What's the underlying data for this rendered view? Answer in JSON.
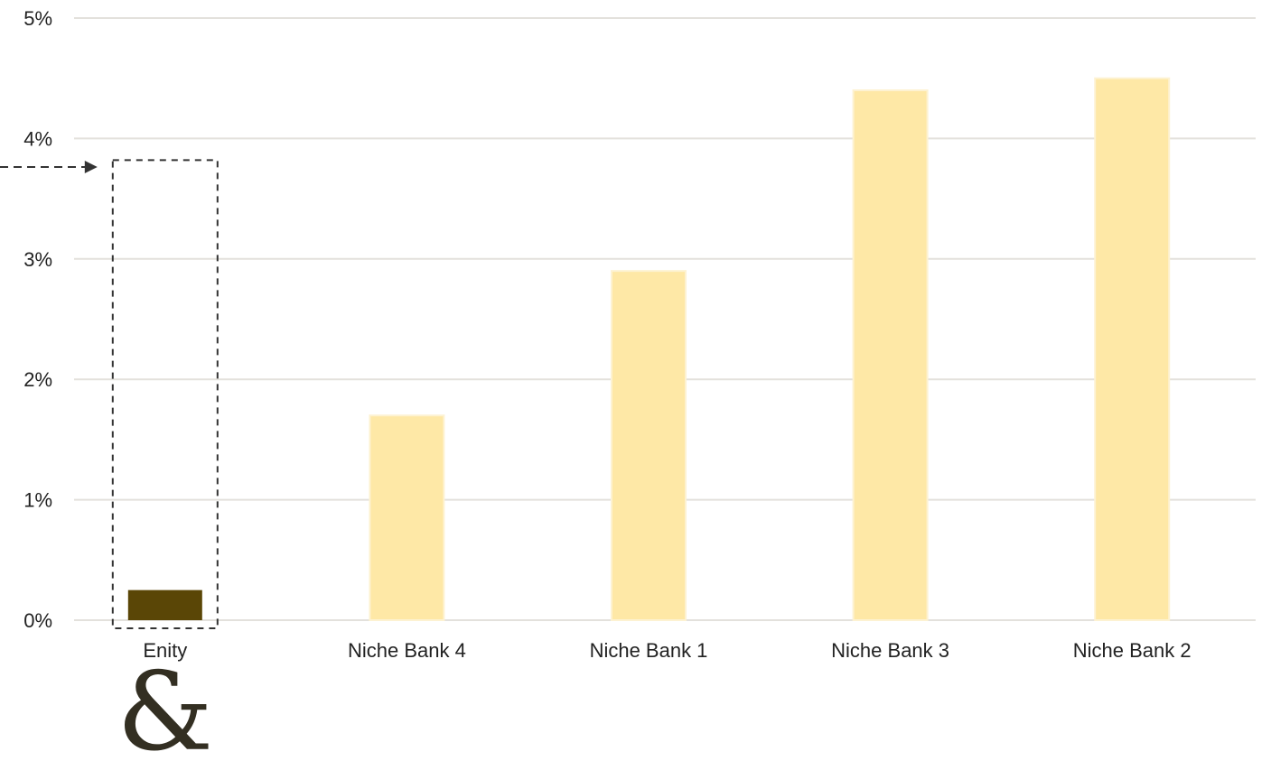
{
  "chart_data": {
    "type": "bar",
    "categories": [
      "Enity",
      "Niche Bank 4",
      "Niche Bank 1",
      "Niche Bank 3",
      "Niche Bank 2"
    ],
    "values": [
      0.25,
      1.7,
      2.9,
      4.4,
      4.5
    ],
    "value_unit": "%",
    "ylim": [
      0,
      5
    ],
    "yticks": [
      0,
      1,
      2,
      3,
      4,
      5
    ],
    "ytick_labels": [
      "0%",
      "1%",
      "2%",
      "3%",
      "4%",
      "5%"
    ],
    "grid": true,
    "highlight_category": "Enity",
    "title": "",
    "xlabel": "",
    "ylabel": ""
  },
  "colors": {
    "highlight_bar": "#5a4606",
    "bar": "#fee8a6",
    "bar_edge": "#fdf2d2",
    "grid": "#e3e1dc",
    "axis_text": "#222222",
    "annotation": "#333333",
    "logo": "#332f22"
  },
  "logo": {
    "glyph": "&",
    "icon": "ampersand-logo-icon"
  }
}
